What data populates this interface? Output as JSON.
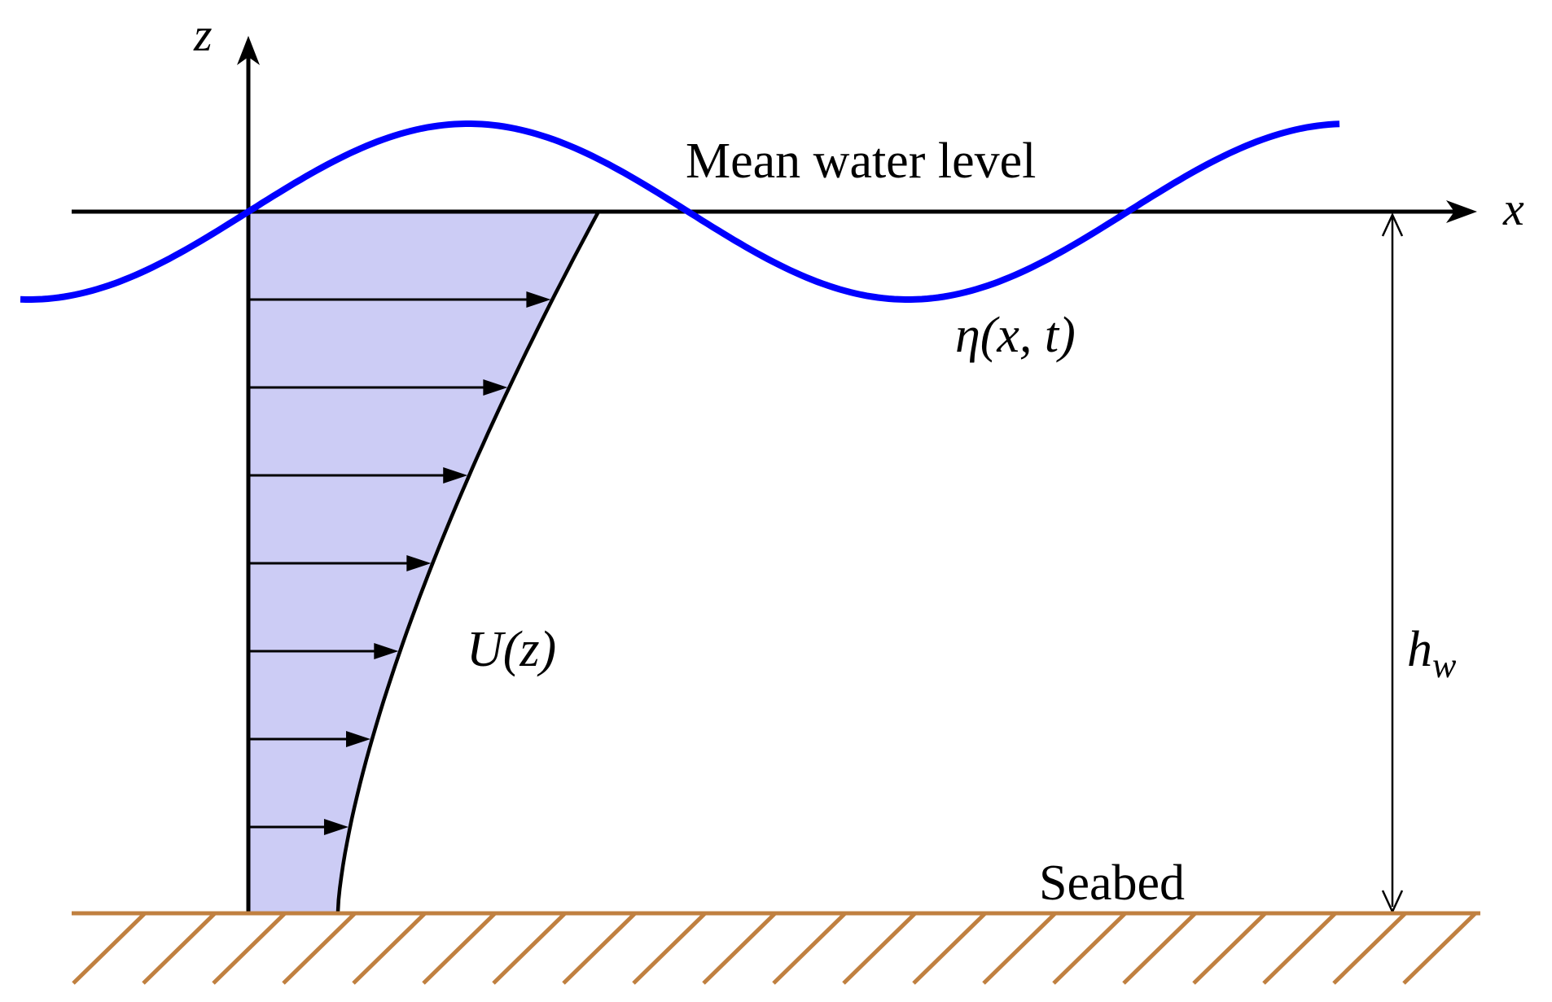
{
  "labels": {
    "z_axis": "z",
    "x_axis": "x",
    "mean_water_level": "Mean water level",
    "surface_elevation": "η(x, t)",
    "current_profile": "U(z)",
    "water_depth_main": "h",
    "water_depth_sub": "w",
    "seabed": "Seabed"
  },
  "colors": {
    "axis": "#000000",
    "wave": "#0000ff",
    "profile_fill": "#ccccf5",
    "seabed": "#c08040",
    "text": "#000000"
  },
  "profile_arrow_count": 7,
  "seabed_hatch_count": 20
}
